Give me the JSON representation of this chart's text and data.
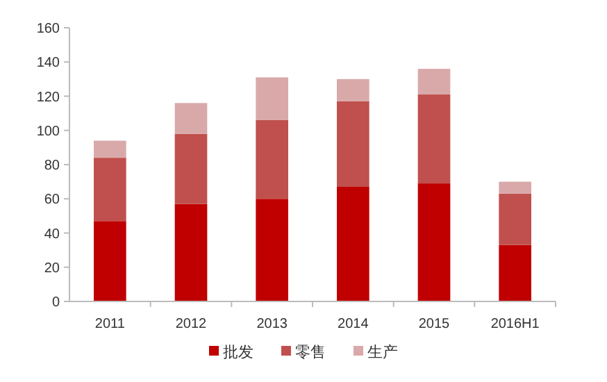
{
  "chart_data": {
    "type": "bar",
    "stacked": true,
    "categories": [
      "2011",
      "2012",
      "2013",
      "2014",
      "2015",
      "2016H1"
    ],
    "series": [
      {
        "name": "批发",
        "color": "#c00000",
        "values": [
          47,
          57,
          60,
          67,
          69,
          33
        ]
      },
      {
        "name": "零售",
        "color": "#c0504d",
        "values": [
          37,
          41,
          46,
          50,
          52,
          30
        ]
      },
      {
        "name": "生产",
        "color": "#d9a9aa",
        "values": [
          10,
          18,
          25,
          13,
          15,
          7
        ]
      }
    ],
    "ylim": [
      0,
      160
    ],
    "yticks": [
      0,
      20,
      40,
      60,
      80,
      100,
      120,
      140,
      160
    ],
    "grid": false,
    "legend": "bottom"
  }
}
